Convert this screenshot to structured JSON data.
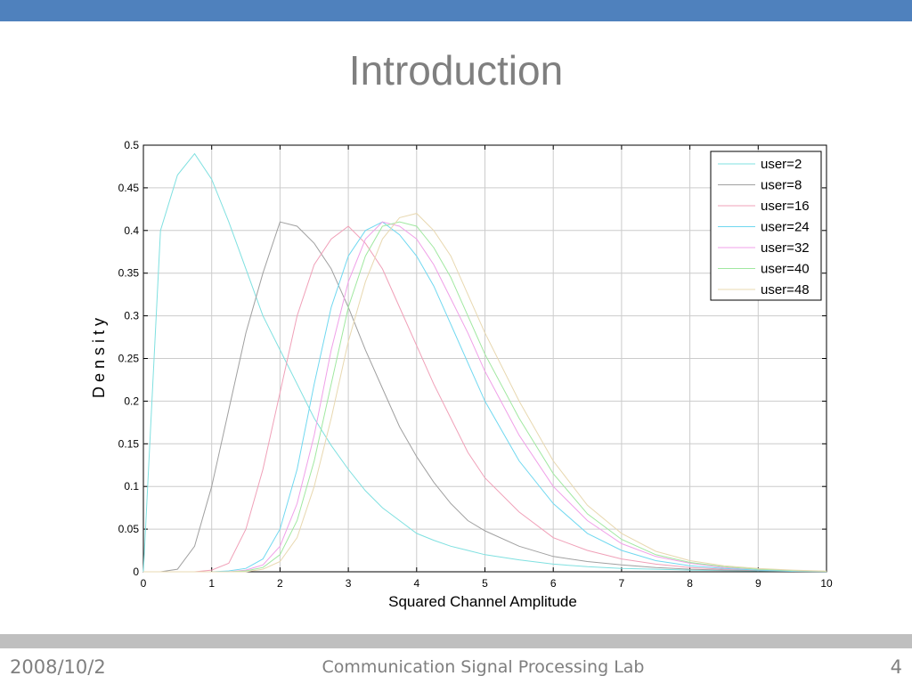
{
  "slide": {
    "title": "Introduction",
    "footer_date": "2008/10/2",
    "footer_lab": "Communication Signal Processing Lab",
    "page_number": "4"
  },
  "colors": {
    "accent_bar": "#4f81bd",
    "footer_bar": "#bfbfbf",
    "title_text": "#7f7f7f",
    "grid": "#cccccc"
  },
  "chart_data": {
    "type": "line",
    "title": "",
    "xlabel": "Squared Channel Amplitude",
    "ylabel": "D e n s i t y",
    "xlim": [
      0,
      10
    ],
    "ylim": [
      0,
      0.5
    ],
    "xticks": [
      "0",
      "1",
      "2",
      "3",
      "4",
      "5",
      "6",
      "7",
      "8",
      "9",
      "10"
    ],
    "yticks": [
      "0",
      "0.05",
      "0.1",
      "0.15",
      "0.2",
      "0.25",
      "0.3",
      "0.35",
      "0.4",
      "0.45",
      "0.5"
    ],
    "grid": true,
    "legend_position": "top-right",
    "x": [
      0,
      0.25,
      0.5,
      0.75,
      1,
      1.25,
      1.5,
      1.75,
      2,
      2.25,
      2.5,
      2.75,
      3,
      3.25,
      3.5,
      3.75,
      4,
      4.25,
      4.5,
      4.75,
      5,
      5.5,
      6,
      6.5,
      7,
      7.5,
      8,
      8.5,
      9,
      9.5,
      10
    ],
    "series": [
      {
        "name": "user=2",
        "color": "#7fe0e0",
        "values": [
          0,
          0.4,
          0.465,
          0.49,
          0.46,
          0.41,
          0.355,
          0.3,
          0.26,
          0.22,
          0.18,
          0.148,
          0.12,
          0.095,
          0.075,
          0.06,
          0.045,
          0.037,
          0.03,
          0.025,
          0.02,
          0.014,
          0.009,
          0.006,
          0.004,
          0.003,
          0.002,
          0.0015,
          0.001,
          0.0005,
          0.0003
        ]
      },
      {
        "name": "user=8",
        "color": "#a0a0a0",
        "values": [
          0,
          0,
          0.003,
          0.03,
          0.1,
          0.19,
          0.28,
          0.35,
          0.41,
          0.405,
          0.385,
          0.355,
          0.31,
          0.26,
          0.215,
          0.17,
          0.135,
          0.105,
          0.08,
          0.06,
          0.048,
          0.03,
          0.018,
          0.012,
          0.008,
          0.005,
          0.003,
          0.002,
          0.0015,
          0.001,
          0.0005
        ]
      },
      {
        "name": "user=16",
        "color": "#f0a0b8",
        "values": [
          0,
          0,
          0,
          0,
          0.002,
          0.01,
          0.05,
          0.12,
          0.21,
          0.3,
          0.36,
          0.39,
          0.405,
          0.385,
          0.355,
          0.31,
          0.265,
          0.22,
          0.18,
          0.14,
          0.11,
          0.07,
          0.04,
          0.025,
          0.015,
          0.009,
          0.005,
          0.003,
          0.002,
          0.001,
          0.0005
        ]
      },
      {
        "name": "user=24",
        "color": "#70d8f0",
        "values": [
          0,
          0,
          0,
          0,
          0,
          0.001,
          0.004,
          0.015,
          0.05,
          0.12,
          0.22,
          0.31,
          0.37,
          0.4,
          0.41,
          0.395,
          0.37,
          0.335,
          0.29,
          0.245,
          0.2,
          0.13,
          0.08,
          0.045,
          0.025,
          0.013,
          0.007,
          0.004,
          0.002,
          0.001,
          0.0005
        ]
      },
      {
        "name": "user=32",
        "color": "#f0a0e8",
        "values": [
          0,
          0,
          0,
          0,
          0,
          0,
          0.002,
          0.008,
          0.03,
          0.08,
          0.16,
          0.26,
          0.34,
          0.39,
          0.41,
          0.405,
          0.39,
          0.36,
          0.32,
          0.28,
          0.235,
          0.16,
          0.1,
          0.06,
          0.033,
          0.018,
          0.01,
          0.005,
          0.003,
          0.0015,
          0.0005
        ]
      },
      {
        "name": "user=40",
        "color": "#a0e8a0",
        "values": [
          0,
          0,
          0,
          0,
          0,
          0,
          0.001,
          0.005,
          0.02,
          0.06,
          0.13,
          0.22,
          0.31,
          0.37,
          0.405,
          0.41,
          0.405,
          0.38,
          0.345,
          0.3,
          0.255,
          0.18,
          0.115,
          0.068,
          0.038,
          0.02,
          0.011,
          0.006,
          0.003,
          0.0015,
          0.0005
        ]
      },
      {
        "name": "user=48",
        "color": "#e8d8b0",
        "values": [
          0,
          0,
          0,
          0,
          0,
          0,
          0,
          0.003,
          0.012,
          0.04,
          0.1,
          0.18,
          0.27,
          0.34,
          0.39,
          0.415,
          0.42,
          0.4,
          0.37,
          0.325,
          0.28,
          0.2,
          0.13,
          0.078,
          0.045,
          0.024,
          0.013,
          0.007,
          0.004,
          0.002,
          0.0008
        ]
      }
    ]
  }
}
